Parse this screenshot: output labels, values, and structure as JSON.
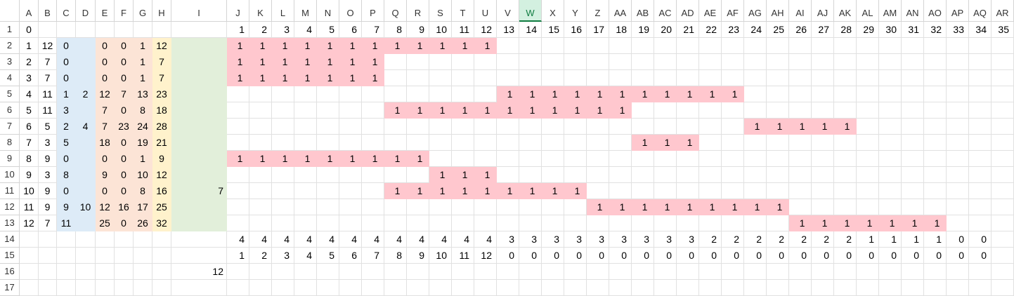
{
  "sheet": {
    "columns": [
      "A",
      "B",
      "C",
      "D",
      "E",
      "F",
      "G",
      "H",
      "I",
      "J",
      "K",
      "L",
      "M",
      "N",
      "O",
      "P",
      "Q",
      "R",
      "S",
      "T",
      "U",
      "V",
      "W",
      "X",
      "Y",
      "Z",
      "AA",
      "AB",
      "AC",
      "AD",
      "AE",
      "AF",
      "AG",
      "AH",
      "AI",
      "AJ",
      "AK",
      "AL",
      "AM",
      "AN",
      "AO",
      "AP",
      "AQ",
      "AR"
    ],
    "rows": [
      {
        "number": 1,
        "cells": [
          0,
          null,
          null,
          null,
          null,
          null,
          null,
          null,
          null,
          1,
          2,
          3,
          4,
          5,
          6,
          7,
          8,
          9,
          10,
          11,
          12,
          13,
          14,
          15,
          16,
          17,
          18,
          19,
          20,
          21,
          22,
          23,
          24,
          25,
          26,
          27,
          28,
          29,
          30,
          31,
          32,
          33,
          34,
          35
        ]
      },
      {
        "number": 2,
        "cells": [
          1,
          12,
          0,
          null,
          0,
          0,
          1,
          12,
          null,
          1,
          1,
          1,
          1,
          1,
          1,
          1,
          1,
          1,
          1,
          1,
          1
        ]
      },
      {
        "number": 3,
        "cells": [
          2,
          7,
          0,
          null,
          0,
          0,
          1,
          7,
          null,
          1,
          1,
          1,
          1,
          1,
          1,
          1
        ]
      },
      {
        "number": 4,
        "cells": [
          3,
          7,
          0,
          null,
          0,
          0,
          1,
          7,
          null,
          1,
          1,
          1,
          1,
          1,
          1,
          1
        ]
      },
      {
        "number": 5,
        "cells": [
          4,
          11,
          1,
          2,
          12,
          7,
          13,
          23,
          null,
          null,
          null,
          null,
          null,
          null,
          null,
          null,
          null,
          null,
          null,
          null,
          null,
          1,
          1,
          1,
          1,
          1,
          1,
          1,
          1,
          1,
          1,
          1
        ]
      },
      {
        "number": 6,
        "cells": [
          5,
          11,
          3,
          null,
          7,
          0,
          8,
          18,
          null,
          null,
          null,
          null,
          null,
          null,
          null,
          null,
          1,
          1,
          1,
          1,
          1,
          1,
          1,
          1,
          1,
          1,
          1
        ]
      },
      {
        "number": 7,
        "cells": [
          6,
          5,
          2,
          4,
          7,
          23,
          24,
          28,
          null,
          null,
          null,
          null,
          null,
          null,
          null,
          null,
          null,
          null,
          null,
          null,
          null,
          null,
          null,
          null,
          null,
          null,
          null,
          null,
          null,
          null,
          null,
          null,
          1,
          1,
          1,
          1,
          1
        ]
      },
      {
        "number": 8,
        "cells": [
          7,
          3,
          5,
          null,
          18,
          0,
          19,
          21,
          null,
          null,
          null,
          null,
          null,
          null,
          null,
          null,
          null,
          null,
          null,
          null,
          null,
          null,
          null,
          null,
          null,
          null,
          null,
          1,
          1,
          1
        ]
      },
      {
        "number": 9,
        "cells": [
          8,
          9,
          0,
          null,
          0,
          0,
          1,
          9,
          null,
          1,
          1,
          1,
          1,
          1,
          1,
          1,
          1,
          1
        ]
      },
      {
        "number": 10,
        "cells": [
          9,
          3,
          8,
          null,
          9,
          0,
          10,
          12,
          null,
          null,
          null,
          null,
          null,
          null,
          null,
          null,
          null,
          null,
          1,
          1,
          1
        ]
      },
      {
        "number": 11,
        "cells": [
          10,
          9,
          0,
          null,
          0,
          0,
          8,
          16,
          7,
          null,
          null,
          null,
          null,
          null,
          null,
          null,
          1,
          1,
          1,
          1,
          1,
          1,
          1,
          1,
          1
        ]
      },
      {
        "number": 12,
        "cells": [
          11,
          9,
          9,
          10,
          12,
          16,
          17,
          25,
          null,
          null,
          null,
          null,
          null,
          null,
          null,
          null,
          null,
          null,
          null,
          null,
          null,
          null,
          null,
          null,
          null,
          1,
          1,
          1,
          1,
          1,
          1,
          1,
          1,
          1
        ]
      },
      {
        "number": 13,
        "cells": [
          12,
          7,
          11,
          null,
          25,
          0,
          26,
          32,
          null,
          null,
          null,
          null,
          null,
          null,
          null,
          null,
          null,
          null,
          null,
          null,
          null,
          null,
          null,
          null,
          null,
          null,
          null,
          null,
          null,
          null,
          null,
          null,
          null,
          null,
          1,
          1,
          1,
          1,
          1,
          1,
          1
        ]
      },
      {
        "number": 14,
        "cells": [
          null,
          null,
          null,
          null,
          null,
          null,
          null,
          null,
          null,
          4,
          4,
          4,
          4,
          4,
          4,
          4,
          4,
          4,
          4,
          4,
          4,
          3,
          3,
          3,
          3,
          3,
          3,
          3,
          3,
          3,
          2,
          2,
          2,
          2,
          2,
          2,
          2,
          1,
          1,
          1,
          1,
          0,
          0
        ]
      },
      {
        "number": 15,
        "cells": [
          null,
          null,
          null,
          null,
          null,
          null,
          null,
          null,
          null,
          1,
          2,
          3,
          4,
          5,
          6,
          7,
          8,
          9,
          10,
          11,
          12,
          0,
          0,
          0,
          0,
          0,
          0,
          0,
          0,
          0,
          0,
          0,
          0,
          0,
          0,
          0,
          0,
          0,
          0,
          0,
          0,
          0,
          0
        ]
      },
      {
        "number": 16,
        "cells": [
          null,
          null,
          null,
          null,
          null,
          null,
          null,
          null,
          12
        ]
      },
      {
        "number": 17
      }
    ]
  }
}
